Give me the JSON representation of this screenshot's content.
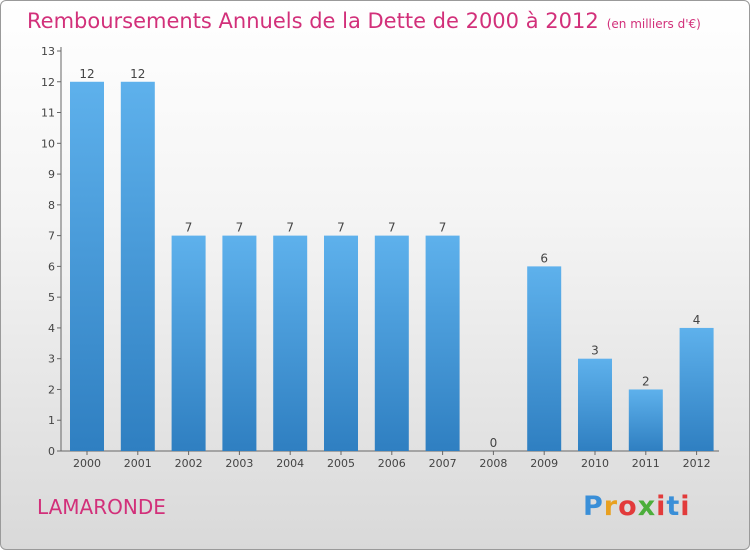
{
  "chart_data": {
    "type": "bar",
    "title": "Remboursements Annuels de la Dette de 2000 à 2012",
    "subtitle": "(en milliers d'€)",
    "categories": [
      "2000",
      "2001",
      "2002",
      "2003",
      "2004",
      "2005",
      "2006",
      "2007",
      "2008",
      "2009",
      "2010",
      "2011",
      "2012"
    ],
    "values": [
      12,
      12,
      7,
      7,
      7,
      7,
      7,
      7,
      0,
      6,
      3,
      2,
      4
    ],
    "ylim": [
      0,
      13
    ],
    "yticks": [
      0,
      1,
      2,
      3,
      4,
      5,
      6,
      7,
      8,
      9,
      10,
      11,
      12,
      13
    ],
    "xlabel": "",
    "ylabel": "",
    "grid": false,
    "bar_color": "#4a9fe0"
  },
  "commune": "LAMARONDE",
  "logo": {
    "text": "Proxiti",
    "colors": [
      "#3a8fd8",
      "#e8a020",
      "#e23b3b",
      "#4cae3b",
      "#e23b3b",
      "#3a8fd8",
      "#e23b3b"
    ]
  }
}
